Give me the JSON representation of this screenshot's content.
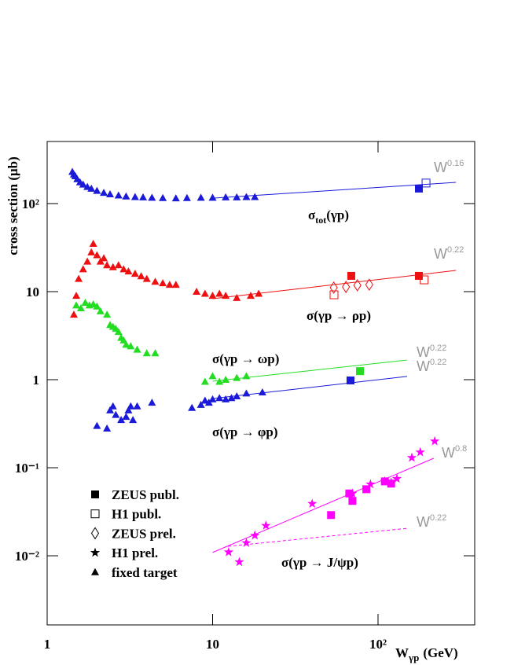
{
  "chart_data": {
    "type": "scatter",
    "xlog": true,
    "ylog": true,
    "xlim": [
      1,
      384
    ],
    "ylim": [
      0.00164,
      507
    ],
    "xticks": [
      {
        "value": 1,
        "label": "1"
      },
      {
        "value": 10,
        "label": "10"
      },
      {
        "value": 100,
        "label": "10²"
      }
    ],
    "yticks": [
      {
        "value": 0.01,
        "label": "10⁻²"
      },
      {
        "value": 0.1,
        "label": "10⁻¹"
      },
      {
        "value": 1,
        "label": "1"
      },
      {
        "value": 10,
        "label": "10"
      },
      {
        "value": 100,
        "label": "10²"
      }
    ],
    "ylabel": "cross section (μb)",
    "xlabel": {
      "main": "W",
      "sub": "γp",
      "unit": "(GeV)"
    },
    "legend": [
      {
        "name": "ZEUS publ.",
        "marker": "square"
      },
      {
        "name": "H1 publ.",
        "marker": "open-square"
      },
      {
        "name": "ZEUS prel.",
        "marker": "open-diamond"
      },
      {
        "name": "H1 prel.",
        "marker": "star"
      },
      {
        "name": "fixed target",
        "marker": "triangle"
      }
    ],
    "series": [
      {
        "marker": "triangle",
        "color": "#1a1ad8",
        "x": [
          1.42,
          1.45,
          1.48,
          1.52,
          1.58,
          1.65,
          1.75,
          1.85,
          2.0,
          2.2,
          2.4,
          2.7,
          3.0,
          3.4,
          3.8,
          4.3,
          5.0,
          6.0,
          7.0,
          8.5,
          10,
          12,
          14,
          16,
          18
        ],
        "values": [
          230,
          215,
          205,
          190,
          175,
          165,
          155,
          148,
          140,
          133,
          128,
          124,
          121,
          119,
          118,
          117,
          116,
          115,
          116,
          117,
          117,
          118,
          118,
          119,
          119
        ]
      },
      {
        "marker": "square",
        "color": "#1a1ad8",
        "x": [
          176.6
        ],
        "values": [
          148
        ]
      },
      {
        "marker": "open-square",
        "color": "#1a1ad8",
        "x": [
          195
        ],
        "values": [
          171
        ]
      },
      {
        "marker": "triangle",
        "color": "#ee1010",
        "x": [
          1.45,
          1.5,
          1.55,
          1.65,
          1.75,
          1.85,
          1.9,
          2.0,
          2.1,
          2.2,
          2.3,
          2.5,
          2.7,
          2.9,
          3.1,
          3.4,
          3.7,
          4.0,
          4.5,
          5,
          5.5,
          6,
          8,
          9,
          10,
          11,
          12,
          14,
          17,
          19
        ],
        "values": [
          5.5,
          9,
          14,
          18,
          22,
          28,
          35,
          26,
          22,
          24,
          20,
          19,
          20,
          18,
          17,
          16,
          15,
          14,
          13,
          12.5,
          12,
          12,
          10,
          9.5,
          9,
          9.5,
          9,
          8.5,
          9,
          9.5
        ]
      },
      {
        "marker": "square",
        "color": "#ee1010",
        "x": [
          68.9,
          176.6
        ],
        "values": [
          15.1,
          15.1
        ]
      },
      {
        "marker": "open-square",
        "color": "#ee1010",
        "x": [
          54.2,
          190
        ],
        "values": [
          9.2,
          13.6
        ]
      },
      {
        "marker": "open-diamond",
        "color": "#ee1010",
        "x": [
          54,
          64,
          75,
          88.5
        ],
        "values": [
          11.1,
          11.3,
          11.8,
          12
        ]
      },
      {
        "marker": "triangle",
        "color": "#22dd22",
        "x": [
          1.5,
          1.6,
          1.7,
          1.8,
          1.9,
          2.0,
          2.1,
          2.3,
          2.4,
          2.5,
          2.6,
          2.7,
          2.8,
          2.9,
          3.0,
          3.2,
          3.5,
          4.0,
          4.5,
          9,
          10,
          11,
          12,
          14,
          16
        ],
        "values": [
          7,
          6.5,
          7.5,
          7,
          7.2,
          6.8,
          6,
          5.5,
          4.2,
          4,
          3.8,
          3.5,
          3,
          2.8,
          2.5,
          2.4,
          2.2,
          2.0,
          2.0,
          0.95,
          1.1,
          0.95,
          1.0,
          1.05,
          1.1
        ]
      },
      {
        "marker": "square",
        "color": "#22dd22",
        "x": [
          77.8
        ],
        "values": [
          1.25
        ]
      },
      {
        "marker": "triangle",
        "color": "#1a1ad8",
        "x": [
          2.0,
          2.3,
          2.4,
          2.5,
          2.6,
          2.8,
          3.0,
          3.1,
          3.2,
          3.3,
          3.5,
          4.3,
          7.5,
          8.5,
          9,
          9.5,
          10,
          11,
          12,
          13,
          14,
          16,
          20
        ],
        "values": [
          0.3,
          0.28,
          0.45,
          0.5,
          0.4,
          0.35,
          0.38,
          0.45,
          0.5,
          0.35,
          0.5,
          0.55,
          0.48,
          0.52,
          0.58,
          0.55,
          0.6,
          0.62,
          0.6,
          0.62,
          0.65,
          0.7,
          0.72
        ]
      },
      {
        "marker": "square",
        "color": "#1a1ad8",
        "x": [
          68.2
        ],
        "values": [
          0.98
        ]
      },
      {
        "marker": "star",
        "color": "#ff00ff",
        "x": [
          12.5,
          14.5,
          16,
          18,
          21,
          40,
          70,
          90,
          110,
          120,
          130,
          160,
          180,
          220
        ],
        "values": [
          0.011,
          0.0085,
          0.014,
          0.017,
          0.022,
          0.039,
          0.051,
          0.065,
          0.07,
          0.068,
          0.075,
          0.13,
          0.15,
          0.2
        ]
      },
      {
        "marker": "square",
        "color": "#ff00ff",
        "x": [
          52,
          67,
          70,
          85,
          110,
          120
        ],
        "values": [
          0.029,
          0.051,
          0.042,
          0.057,
          0.07,
          0.066
        ]
      }
    ],
    "fits": [
      {
        "color": "#1a1ad8",
        "dashed": false,
        "x": [
          10,
          296
        ],
        "values": [
          115,
          174
        ]
      },
      {
        "color": "#ee1010",
        "dashed": false,
        "x": [
          10,
          296
        ],
        "values": [
          8.3,
          17.4
        ]
      },
      {
        "color": "#22dd22",
        "dashed": false,
        "x": [
          10,
          150
        ],
        "values": [
          0.96,
          1.67
        ]
      },
      {
        "color": "#1a1ad8",
        "dashed": false,
        "x": [
          10,
          150
        ],
        "values": [
          0.61,
          1.09
        ]
      },
      {
        "color": "#ff00ff",
        "dashed": false,
        "x": [
          10,
          217
        ],
        "values": [
          0.0109,
          0.128
        ]
      },
      {
        "color": "#ff00ff",
        "dashed": true,
        "x": [
          12.4,
          150
        ],
        "values": [
          0.0128,
          0.0205
        ]
      }
    ],
    "power_labels": [
      {
        "base": "W",
        "exp": "0.16"
      },
      {
        "base": "W",
        "exp": "0.22"
      },
      {
        "base": "W",
        "exp": "0.22"
      },
      {
        "base": "W",
        "exp": "0.22"
      },
      {
        "base": "W",
        "exp": "0.8"
      },
      {
        "base": "W",
        "exp": "0.22"
      }
    ],
    "process_labels": [
      {
        "main": "σ",
        "sub": "tot",
        "rest": "(γp)"
      },
      {
        "main": "σ(γp → ρp)"
      },
      {
        "main": "σ(γp → ωp)"
      },
      {
        "main": "σ(γp → φp)"
      },
      {
        "main": "σ(γp → J/ψp)"
      }
    ]
  }
}
